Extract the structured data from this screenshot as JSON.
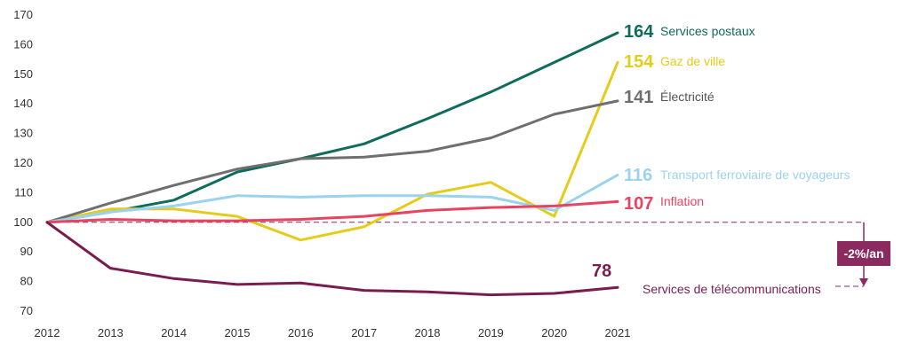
{
  "chart_data": {
    "type": "line",
    "title": "",
    "xlabel": "",
    "ylabel": "",
    "x": [
      2012,
      2013,
      2014,
      2015,
      2016,
      2017,
      2018,
      2019,
      2020,
      2021
    ],
    "ylim": [
      70,
      170
    ],
    "yticks": [
      70,
      80,
      90,
      100,
      110,
      120,
      130,
      140,
      150,
      160,
      170
    ],
    "grid": false,
    "reference_line": {
      "y": 100,
      "style": "dashed",
      "color": "#8b2a5e"
    },
    "series": [
      {
        "name": "Services postaux",
        "end_label": "164",
        "color": "#0f6b5c",
        "values": [
          100,
          103.5,
          107.5,
          117,
          121.5,
          126.5,
          135,
          144,
          154,
          164
        ]
      },
      {
        "name": "Gaz de ville",
        "end_label": "154",
        "color": "#e6cc1a",
        "values": [
          100,
          104.5,
          104.5,
          102,
          94,
          98.5,
          109.5,
          113.5,
          102,
          154
        ]
      },
      {
        "name": "Électricité",
        "end_label": "141",
        "color": "#6f6f6f",
        "values": [
          100,
          106.5,
          112.5,
          118,
          121.5,
          122,
          124,
          128.5,
          136.5,
          141
        ]
      },
      {
        "name": "Transport ferroviaire de voyageurs",
        "end_label": "116",
        "color": "#9bd3ee",
        "values": [
          100,
          103.5,
          105.5,
          109,
          108.5,
          109,
          109,
          108.5,
          104,
          116
        ]
      },
      {
        "name": "Inflation",
        "end_label": "107",
        "color": "#e84460",
        "values": [
          100,
          101,
          100.5,
          100.5,
          101,
          102,
          104,
          105,
          105.5,
          107
        ]
      },
      {
        "name": "Services de télécommunications",
        "end_label": "78",
        "color": "#7a1d4e",
        "values": [
          100,
          84.5,
          81,
          79,
          79.5,
          77,
          76.5,
          75.5,
          76,
          78
        ]
      }
    ],
    "annotation": {
      "text": "-2%/an",
      "color": "#8b2a5e"
    }
  }
}
